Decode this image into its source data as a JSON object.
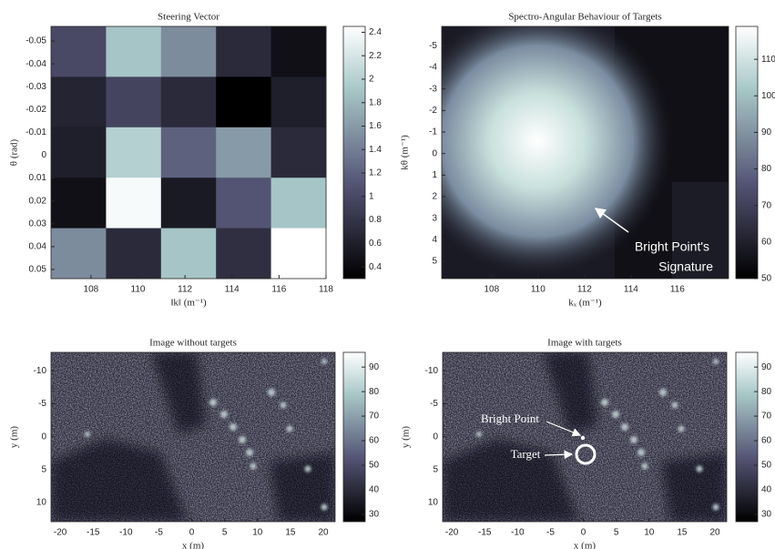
{
  "chart_data": [
    {
      "type": "heatmap",
      "title": "Steering Vector",
      "x_label": "‖k‖ (m⁻¹)",
      "y_label": "θ (rad)",
      "xlim": [
        106.3,
        118.0
      ],
      "xticks": [
        108,
        110,
        112,
        114,
        116,
        118
      ],
      "ylim": [
        -0.0564,
        0.054
      ],
      "yreverse": true,
      "yticks": [
        -0.05,
        -0.04,
        -0.03,
        -0.02,
        -0.01,
        0,
        0.01,
        0.02,
        0.03,
        0.04,
        0.05
      ],
      "values": [
        [
          1.0,
          1.9,
          1.5,
          0.7,
          0.45
        ],
        [
          0.65,
          0.95,
          0.7,
          0.3,
          0.6
        ],
        [
          0.6,
          2.0,
          1.2,
          1.6,
          0.7
        ],
        [
          0.45,
          2.4,
          0.55,
          1.1,
          1.9
        ],
        [
          1.5,
          0.7,
          1.9,
          0.75,
          2.45
        ]
      ],
      "clim": [
        0.3,
        2.45
      ],
      "cticks": [
        0.4,
        0.6,
        0.8,
        1,
        1.2,
        1.4,
        1.6,
        1.8,
        2,
        2.2,
        2.4
      ]
    },
    {
      "type": "image",
      "title": "Spectro-Angular Behaviour of Targets",
      "x_label": "kₓ (m⁻¹)",
      "y_label": "kθ (m⁻¹)",
      "xlim": [
        105.85,
        118.2
      ],
      "xticks": [
        108,
        110,
        112,
        114,
        116
      ],
      "ylim": [
        -5.9,
        5.8
      ],
      "yreverse": true,
      "yticks": [
        -5,
        -4,
        -3,
        -2,
        -1,
        0,
        1,
        2,
        3,
        4,
        5
      ],
      "clim": [
        50,
        119
      ],
      "cticks": [
        50,
        60,
        70,
        80,
        90,
        100,
        110
      ],
      "annotations": [
        "Bright Point's",
        "Signature"
      ]
    },
    {
      "type": "image",
      "title": "Image without targets",
      "x_label": "x (m)",
      "y_label": "y (m)",
      "xlim": [
        -21.4,
        21.8
      ],
      "xticks": [
        -20,
        -15,
        -10,
        -5,
        0,
        5,
        10,
        15,
        20
      ],
      "ylim": [
        -12.8,
        12.9
      ],
      "yreverse": true,
      "yticks": [
        -10,
        -5,
        0,
        5,
        10
      ],
      "clim": [
        27,
        96
      ],
      "cticks": [
        30,
        40,
        50,
        60,
        70,
        80,
        90
      ]
    },
    {
      "type": "image",
      "title": "Image with targets",
      "x_label": "x (m)",
      "y_label": "y (m)",
      "xlim": [
        -21.4,
        21.8
      ],
      "xticks": [
        -20,
        -15,
        -10,
        -5,
        0,
        5,
        10,
        15,
        20
      ],
      "ylim": [
        -12.8,
        12.9
      ],
      "yreverse": true,
      "yticks": [
        -10,
        -5,
        0,
        5,
        10
      ],
      "clim": [
        27,
        96
      ],
      "cticks": [
        30,
        40,
        50,
        60,
        70,
        80,
        90
      ],
      "annotations": [
        "Bright Point",
        "Target"
      ]
    }
  ]
}
